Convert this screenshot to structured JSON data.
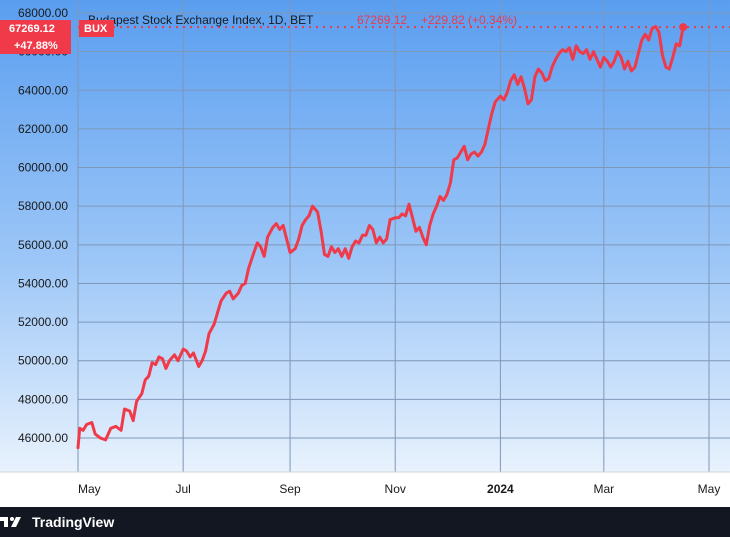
{
  "chart_data": {
    "type": "line",
    "title": "Budapest Stock Exchange Index, 1D, BET",
    "last_value_label": "67269.12",
    "change_label": "+229.82 (+0.34%)",
    "badge_price": "67269.12",
    "badge_symbol": "BUX",
    "badge_change": "+47.88%",
    "ylim": [
      44500,
      68000
    ],
    "y_ticks": [
      "46000.00",
      "48000.00",
      "50000.00",
      "52000.00",
      "54000.00",
      "56000.00",
      "58000.00",
      "60000.00",
      "62000.00",
      "64000.00",
      "66000.00",
      "68000.00"
    ],
    "x_ticks": [
      {
        "label": "May",
        "x": "2023-05-01"
      },
      {
        "label": "Jul",
        "x": "2023-07-01"
      },
      {
        "label": "Sep",
        "x": "2023-09-01"
      },
      {
        "label": "Nov",
        "x": "2023-11-01"
      },
      {
        "label": "2024",
        "x": "2024-01-01",
        "bold": true
      },
      {
        "label": "Mar",
        "x": "2024-03-01"
      },
      {
        "label": "May",
        "x": "2024-05-01"
      }
    ],
    "x_start": "2023-05-01",
    "x_end": "2024-05-01",
    "grid": true,
    "line_color": "#f03a4a",
    "series": [
      {
        "points": [
          [
            "2023-05-01",
            45500
          ],
          [
            "2023-05-02",
            46500
          ],
          [
            "2023-05-04",
            46400
          ],
          [
            "2023-05-06",
            46700
          ],
          [
            "2023-05-09",
            46800
          ],
          [
            "2023-05-11",
            46200
          ],
          [
            "2023-05-14",
            46000
          ],
          [
            "2023-05-17",
            45900
          ],
          [
            "2023-05-20",
            46500
          ],
          [
            "2023-05-23",
            46600
          ],
          [
            "2023-05-26",
            46400
          ],
          [
            "2023-05-28",
            47500
          ],
          [
            "2023-05-31",
            47400
          ],
          [
            "2023-06-02",
            46900
          ],
          [
            "2023-06-04",
            47900
          ],
          [
            "2023-06-07",
            48300
          ],
          [
            "2023-06-09",
            49000
          ],
          [
            "2023-06-11",
            49200
          ],
          [
            "2023-06-13",
            49900
          ],
          [
            "2023-06-15",
            49800
          ],
          [
            "2023-06-17",
            50200
          ],
          [
            "2023-06-19",
            50100
          ],
          [
            "2023-06-21",
            49600
          ],
          [
            "2023-06-23",
            50000
          ],
          [
            "2023-06-26",
            50300
          ],
          [
            "2023-06-28",
            50000
          ],
          [
            "2023-07-01",
            50600
          ],
          [
            "2023-07-03",
            50500
          ],
          [
            "2023-07-05",
            50200
          ],
          [
            "2023-07-07",
            50400
          ],
          [
            "2023-07-10",
            49700
          ],
          [
            "2023-07-12",
            50000
          ],
          [
            "2023-07-14",
            50500
          ],
          [
            "2023-07-16",
            51400
          ],
          [
            "2023-07-19",
            51900
          ],
          [
            "2023-07-21",
            52500
          ],
          [
            "2023-07-23",
            53100
          ],
          [
            "2023-07-26",
            53500
          ],
          [
            "2023-07-28",
            53600
          ],
          [
            "2023-07-30",
            53200
          ],
          [
            "2023-08-02",
            53500
          ],
          [
            "2023-08-04",
            53900
          ],
          [
            "2023-08-06",
            54000
          ],
          [
            "2023-08-08",
            54800
          ],
          [
            "2023-08-11",
            55600
          ],
          [
            "2023-08-13",
            56100
          ],
          [
            "2023-08-15",
            55900
          ],
          [
            "2023-08-17",
            55400
          ],
          [
            "2023-08-19",
            56400
          ],
          [
            "2023-08-22",
            56900
          ],
          [
            "2023-08-24",
            57100
          ],
          [
            "2023-08-26",
            56800
          ],
          [
            "2023-08-28",
            57000
          ],
          [
            "2023-08-30",
            56300
          ],
          [
            "2023-09-01",
            55600
          ],
          [
            "2023-09-04",
            55800
          ],
          [
            "2023-09-06",
            56300
          ],
          [
            "2023-09-08",
            57000
          ],
          [
            "2023-09-10",
            57300
          ],
          [
            "2023-09-12",
            57500
          ],
          [
            "2023-09-14",
            58000
          ],
          [
            "2023-09-17",
            57700
          ],
          [
            "2023-09-19",
            56700
          ],
          [
            "2023-09-21",
            55500
          ],
          [
            "2023-09-23",
            55400
          ],
          [
            "2023-09-25",
            55900
          ],
          [
            "2023-09-27",
            55600
          ],
          [
            "2023-09-29",
            55800
          ],
          [
            "2023-10-01",
            55400
          ],
          [
            "2023-10-03",
            55800
          ],
          [
            "2023-10-05",
            55300
          ],
          [
            "2023-10-07",
            55900
          ],
          [
            "2023-10-09",
            56200
          ],
          [
            "2023-10-11",
            56100
          ],
          [
            "2023-10-13",
            56500
          ],
          [
            "2023-10-15",
            56500
          ],
          [
            "2023-10-17",
            57000
          ],
          [
            "2023-10-19",
            56800
          ],
          [
            "2023-10-21",
            56100
          ],
          [
            "2023-10-23",
            56400
          ],
          [
            "2023-10-25",
            56100
          ],
          [
            "2023-10-27",
            56300
          ],
          [
            "2023-10-29",
            57300
          ],
          [
            "2023-11-01",
            57400
          ],
          [
            "2023-11-03",
            57400
          ],
          [
            "2023-11-05",
            57600
          ],
          [
            "2023-11-07",
            57500
          ],
          [
            "2023-11-09",
            58100
          ],
          [
            "2023-11-11",
            57400
          ],
          [
            "2023-11-13",
            56700
          ],
          [
            "2023-11-15",
            56900
          ],
          [
            "2023-11-17",
            56400
          ],
          [
            "2023-11-19",
            56000
          ],
          [
            "2023-11-21",
            57000
          ],
          [
            "2023-11-23",
            57600
          ],
          [
            "2023-11-25",
            58000
          ],
          [
            "2023-11-27",
            58500
          ],
          [
            "2023-11-29",
            58300
          ],
          [
            "2023-12-01",
            58600
          ],
          [
            "2023-12-03",
            59200
          ],
          [
            "2023-12-05",
            60400
          ],
          [
            "2023-12-07",
            60500
          ],
          [
            "2023-12-09",
            60800
          ],
          [
            "2023-12-11",
            61100
          ],
          [
            "2023-12-13",
            60400
          ],
          [
            "2023-12-15",
            60700
          ],
          [
            "2023-12-17",
            60800
          ],
          [
            "2023-12-19",
            60600
          ],
          [
            "2023-12-21",
            60800
          ],
          [
            "2023-12-23",
            61200
          ],
          [
            "2023-12-25",
            62000
          ],
          [
            "2023-12-27",
            62800
          ],
          [
            "2023-12-29",
            63400
          ],
          [
            "2024-01-01",
            63700
          ],
          [
            "2024-01-03",
            63500
          ],
          [
            "2024-01-05",
            63900
          ],
          [
            "2024-01-07",
            64500
          ],
          [
            "2024-01-09",
            64800
          ],
          [
            "2024-01-11",
            64300
          ],
          [
            "2024-01-13",
            64700
          ],
          [
            "2024-01-15",
            64100
          ],
          [
            "2024-01-17",
            63300
          ],
          [
            "2024-01-19",
            63500
          ],
          [
            "2024-01-21",
            64700
          ],
          [
            "2024-01-23",
            65100
          ],
          [
            "2024-01-25",
            64900
          ],
          [
            "2024-01-27",
            64500
          ],
          [
            "2024-01-29",
            64600
          ],
          [
            "2024-01-31",
            65200
          ],
          [
            "2024-02-02",
            65600
          ],
          [
            "2024-02-04",
            65900
          ],
          [
            "2024-02-06",
            66100
          ],
          [
            "2024-02-08",
            66000
          ],
          [
            "2024-02-10",
            66200
          ],
          [
            "2024-02-12",
            65600
          ],
          [
            "2024-02-14",
            66300
          ],
          [
            "2024-02-16",
            66000
          ],
          [
            "2024-02-18",
            65900
          ],
          [
            "2024-02-20",
            66100
          ],
          [
            "2024-02-22",
            65600
          ],
          [
            "2024-02-24",
            66000
          ],
          [
            "2024-02-26",
            65600
          ],
          [
            "2024-02-28",
            65200
          ],
          [
            "2024-03-01",
            65700
          ],
          [
            "2024-03-03",
            65500
          ],
          [
            "2024-03-05",
            65200
          ],
          [
            "2024-03-07",
            65500
          ],
          [
            "2024-03-09",
            66000
          ],
          [
            "2024-03-11",
            65700
          ],
          [
            "2024-03-13",
            65100
          ],
          [
            "2024-03-15",
            65500
          ],
          [
            "2024-03-17",
            65000
          ],
          [
            "2024-03-19",
            65200
          ],
          [
            "2024-03-21",
            65900
          ],
          [
            "2024-03-23",
            66600
          ],
          [
            "2024-03-25",
            66900
          ],
          [
            "2024-03-27",
            66600
          ],
          [
            "2024-03-29",
            67200
          ],
          [
            "2024-03-31",
            67300
          ],
          [
            "2024-04-02",
            67000
          ],
          [
            "2024-04-04",
            65800
          ],
          [
            "2024-04-06",
            65200
          ],
          [
            "2024-04-08",
            65100
          ],
          [
            "2024-04-10",
            65700
          ],
          [
            "2024-04-12",
            66400
          ],
          [
            "2024-04-14",
            66300
          ],
          [
            "2024-04-16",
            67269
          ]
        ]
      }
    ]
  },
  "footer": {
    "brand": "TradingView"
  }
}
